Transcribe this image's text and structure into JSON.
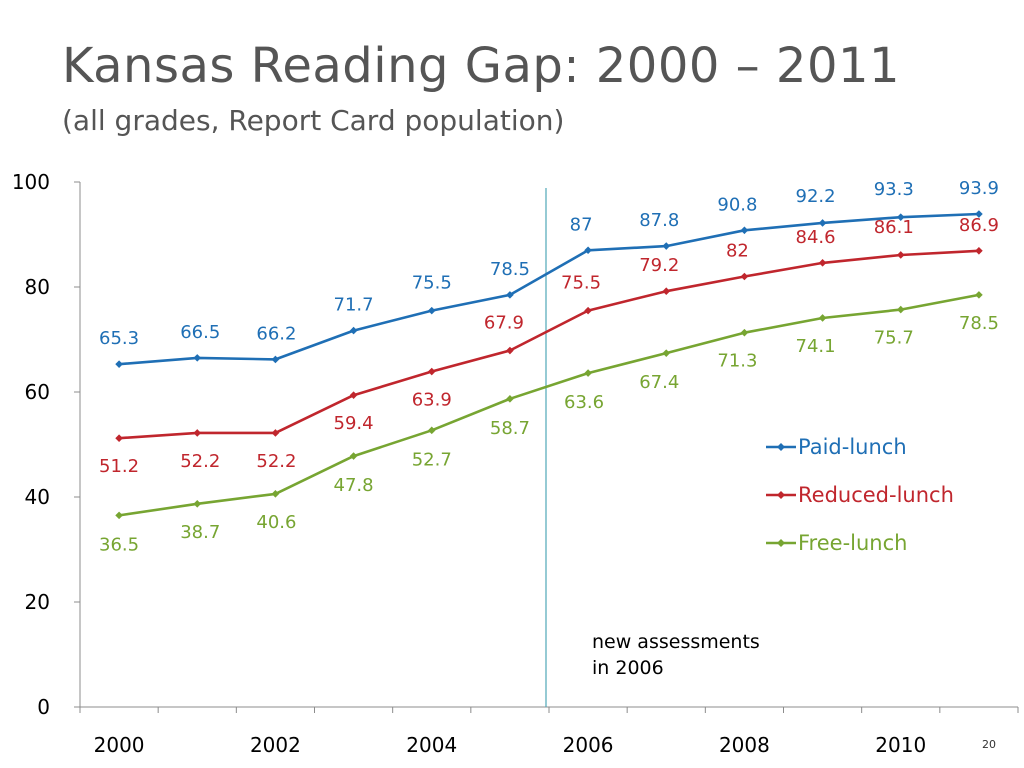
{
  "slide": {
    "title": "Kansas Reading Gap:  2000 – 2011",
    "subtitle": "(all grades, Report Card population)",
    "page_number": "20"
  },
  "chart_data": {
    "type": "line",
    "title": "Kansas Reading Gap:  2000 – 2011",
    "subtitle": "(all grades, Report Card population)",
    "x": [
      2000,
      2001,
      2002,
      2003,
      2004,
      2005,
      2006,
      2007,
      2008,
      2009,
      2010,
      2011
    ],
    "x_tick_labels": [
      "2000",
      "2002",
      "2004",
      "2006",
      "2008",
      "2010"
    ],
    "y_tick_labels": [
      "0",
      "20",
      "40",
      "60",
      "80",
      "100"
    ],
    "xlim": [
      2000,
      2011
    ],
    "ylim": [
      0,
      100
    ],
    "grid": false,
    "legend_position": "right",
    "series": [
      {
        "name": "Paid-lunch",
        "color": "#1f6fb5",
        "values": [
          65.3,
          66.5,
          66.2,
          71.7,
          75.5,
          78.5,
          87,
          87.8,
          90.8,
          92.2,
          93.3,
          93.9
        ],
        "labels": [
          "65.3",
          "66.5",
          "66.2",
          "71.7",
          "75.5",
          "78.5",
          "87",
          "87.8",
          "90.8",
          "92.2",
          "93.3",
          "93.9"
        ]
      },
      {
        "name": "Reduced-lunch",
        "color": "#c0262d",
        "values": [
          51.2,
          52.2,
          52.2,
          59.4,
          63.9,
          67.9,
          75.5,
          79.2,
          82,
          84.6,
          86.1,
          86.9
        ],
        "labels": [
          "51.2",
          "52.2",
          "52.2",
          "59.4",
          "63.9",
          "67.9",
          "75.5",
          "79.2",
          "82",
          "84.6",
          "86.1",
          "86.9"
        ]
      },
      {
        "name": "Free-lunch",
        "color": "#77a532",
        "values": [
          36.5,
          38.7,
          40.6,
          47.8,
          52.7,
          58.7,
          63.6,
          67.4,
          71.3,
          74.1,
          75.7,
          78.5
        ],
        "labels": [
          "36.5",
          "38.7",
          "40.6",
          "47.8",
          "52.7",
          "58.7",
          "63.6",
          "67.4",
          "71.3",
          "74.1",
          "75.7",
          "78.5"
        ]
      }
    ],
    "reference_line": {
      "x": 2005.5,
      "color": "#4fa8b8"
    },
    "annotation": [
      "new assessments",
      "in 2006"
    ]
  }
}
